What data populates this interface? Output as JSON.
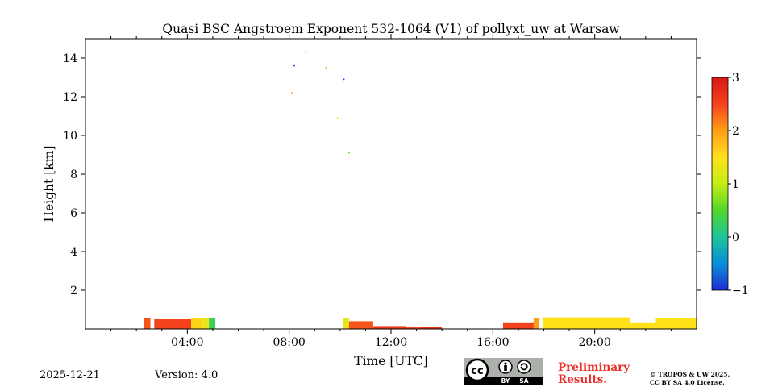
{
  "chart_data": {
    "type": "heatmap",
    "title": "Quasi BSC Angstroem Exponent 532-1064 (V1) of pollyxt_uw at Warsaw",
    "xlabel": "Time [UTC]",
    "ylabel": "Height [km]",
    "xlim_hours": [
      0,
      24
    ],
    "ylim_km": [
      0,
      15
    ],
    "x_ticks": [
      {
        "hour": 4,
        "label": "04:00"
      },
      {
        "hour": 8,
        "label": "08:00"
      },
      {
        "hour": 12,
        "label": "12:00"
      },
      {
        "hour": 16,
        "label": "16:00"
      },
      {
        "hour": 20,
        "label": "20:00"
      }
    ],
    "y_ticks": [
      {
        "km": 2,
        "label": "2"
      },
      {
        "km": 4,
        "label": "4"
      },
      {
        "km": 6,
        "label": "6"
      },
      {
        "km": 8,
        "label": "8"
      },
      {
        "km": 10,
        "label": "10"
      },
      {
        "km": 12,
        "label": "12"
      },
      {
        "km": 14,
        "label": "14"
      }
    ],
    "colorbar": {
      "min": -1,
      "max": 3,
      "ticks": [
        {
          "value": 3,
          "label": "3"
        },
        {
          "value": 2,
          "label": "2"
        },
        {
          "value": 1,
          "label": "1"
        },
        {
          "value": 0,
          "label": "0"
        },
        {
          "value": -1,
          "label": "−1"
        }
      ],
      "colors": [
        "#1e2fd6",
        "#0a8fd6",
        "#1fc49a",
        "#52d62a",
        "#c6ee14",
        "#ffe11a",
        "#ff9d1a",
        "#f5421c",
        "#d41a12"
      ]
    },
    "regions": [
      {
        "start_h": 2.3,
        "end_h": 2.55,
        "top_km": 0.55,
        "value": 2.4
      },
      {
        "start_h": 2.7,
        "end_h": 4.15,
        "top_km": 0.5,
        "value": 2.5
      },
      {
        "start_h": 4.15,
        "end_h": 4.6,
        "top_km": 0.55,
        "value": 1.6
      },
      {
        "start_h": 4.6,
        "end_h": 4.85,
        "top_km": 0.55,
        "value": 1.3
      },
      {
        "start_h": 4.85,
        "end_h": 5.1,
        "top_km": 0.55,
        "value": 0.3
      },
      {
        "start_h": 10.1,
        "end_h": 10.35,
        "top_km": 0.55,
        "value": 1.3
      },
      {
        "start_h": 10.35,
        "end_h": 11.3,
        "top_km": 0.4,
        "value": 2.4
      },
      {
        "start_h": 11.3,
        "end_h": 12.6,
        "top_km": 0.15,
        "value": 2.6
      },
      {
        "start_h": 12.6,
        "end_h": 13.1,
        "top_km": 0.08,
        "value": 2.6
      },
      {
        "start_h": 13.1,
        "end_h": 14.0,
        "top_km": 0.12,
        "value": 2.6
      },
      {
        "start_h": 16.4,
        "end_h": 17.6,
        "top_km": 0.3,
        "value": 2.5
      },
      {
        "start_h": 17.6,
        "end_h": 17.8,
        "top_km": 0.55,
        "value": 2.0
      },
      {
        "start_h": 17.95,
        "end_h": 21.4,
        "top_km": 0.6,
        "value": 1.5
      },
      {
        "start_h": 21.4,
        "end_h": 22.4,
        "top_km": 0.3,
        "value": 1.5
      },
      {
        "start_h": 22.4,
        "end_h": 24.0,
        "top_km": 0.55,
        "value": 1.5
      }
    ],
    "scatter_points": [
      {
        "time_h": 8.2,
        "height_km": 13.6,
        "value": -1
      },
      {
        "time_h": 8.65,
        "height_km": 14.3,
        "value": 2.6
      },
      {
        "time_h": 9.45,
        "height_km": 13.5,
        "value": 2.0
      },
      {
        "time_h": 10.15,
        "height_km": 12.9,
        "value": -1
      },
      {
        "time_h": 9.9,
        "height_km": 10.9,
        "value": 1.7
      },
      {
        "time_h": 10.35,
        "height_km": 9.1,
        "value": 0.5
      },
      {
        "time_h": 8.1,
        "height_km": 12.2,
        "value": 2.0
      }
    ]
  },
  "footer": {
    "date": "2025-12-21",
    "version": "Version: 4.0",
    "preliminary_line1": "Preliminary",
    "preliminary_line2": "Results.",
    "copyright_line1": "© TROPOS & UW 2025.",
    "copyright_line2": "CC BY SA 4.0 License.",
    "license_labels": {
      "cc": "cc",
      "by": "BY",
      "sa": "SA"
    }
  }
}
